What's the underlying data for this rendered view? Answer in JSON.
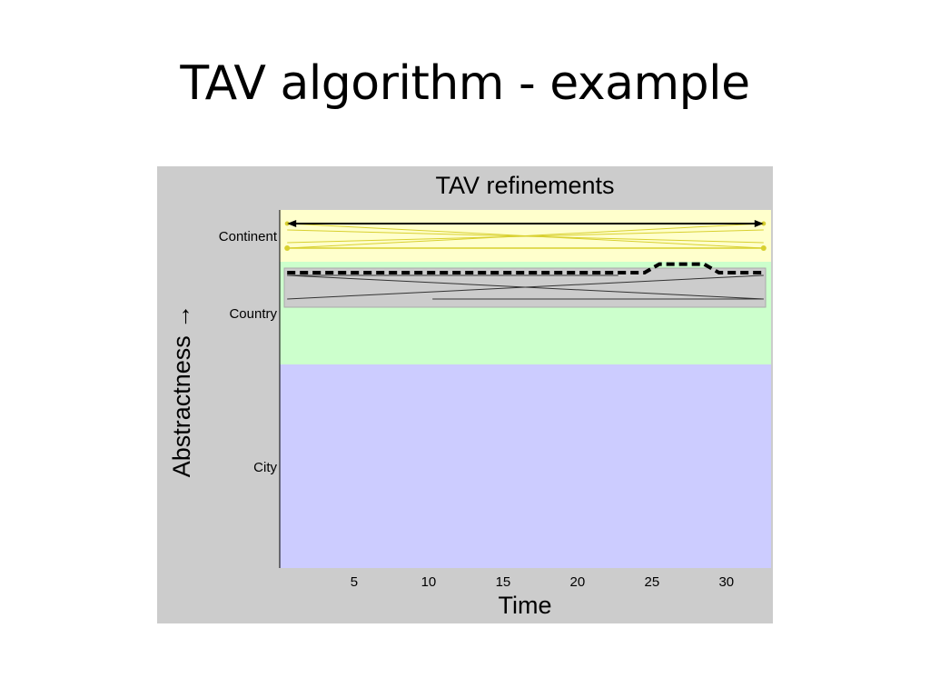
{
  "slide": {
    "title": "TAV algorithm - example"
  },
  "chart_data": {
    "type": "line",
    "title": "TAV refinements",
    "xlabel": "Time",
    "ylabel": "Abstractness →",
    "xlim": [
      0,
      33
    ],
    "x_ticks": [
      5,
      10,
      15,
      20,
      25,
      30
    ],
    "y_levels": [
      "City",
      "Country",
      "Continent"
    ],
    "level_bands": [
      {
        "level": "Continent",
        "color": "#ffffcc"
      },
      {
        "level": "Country",
        "color": "#ccffcc"
      },
      {
        "level": "City",
        "color": "#ccccff"
      }
    ],
    "series": [
      {
        "style": "dashed",
        "x": [
          0.5,
          24.5,
          25.5,
          28.5,
          29.5,
          32.5
        ],
        "y": [
          2.53,
          2.53,
          2.64,
          2.64,
          2.53,
          2.53
        ]
      }
    ],
    "annotations": [
      {
        "kind": "double-arrow",
        "level": "Continent",
        "x": [
          0.5,
          32.5
        ]
      }
    ],
    "background": "#cccccc"
  }
}
